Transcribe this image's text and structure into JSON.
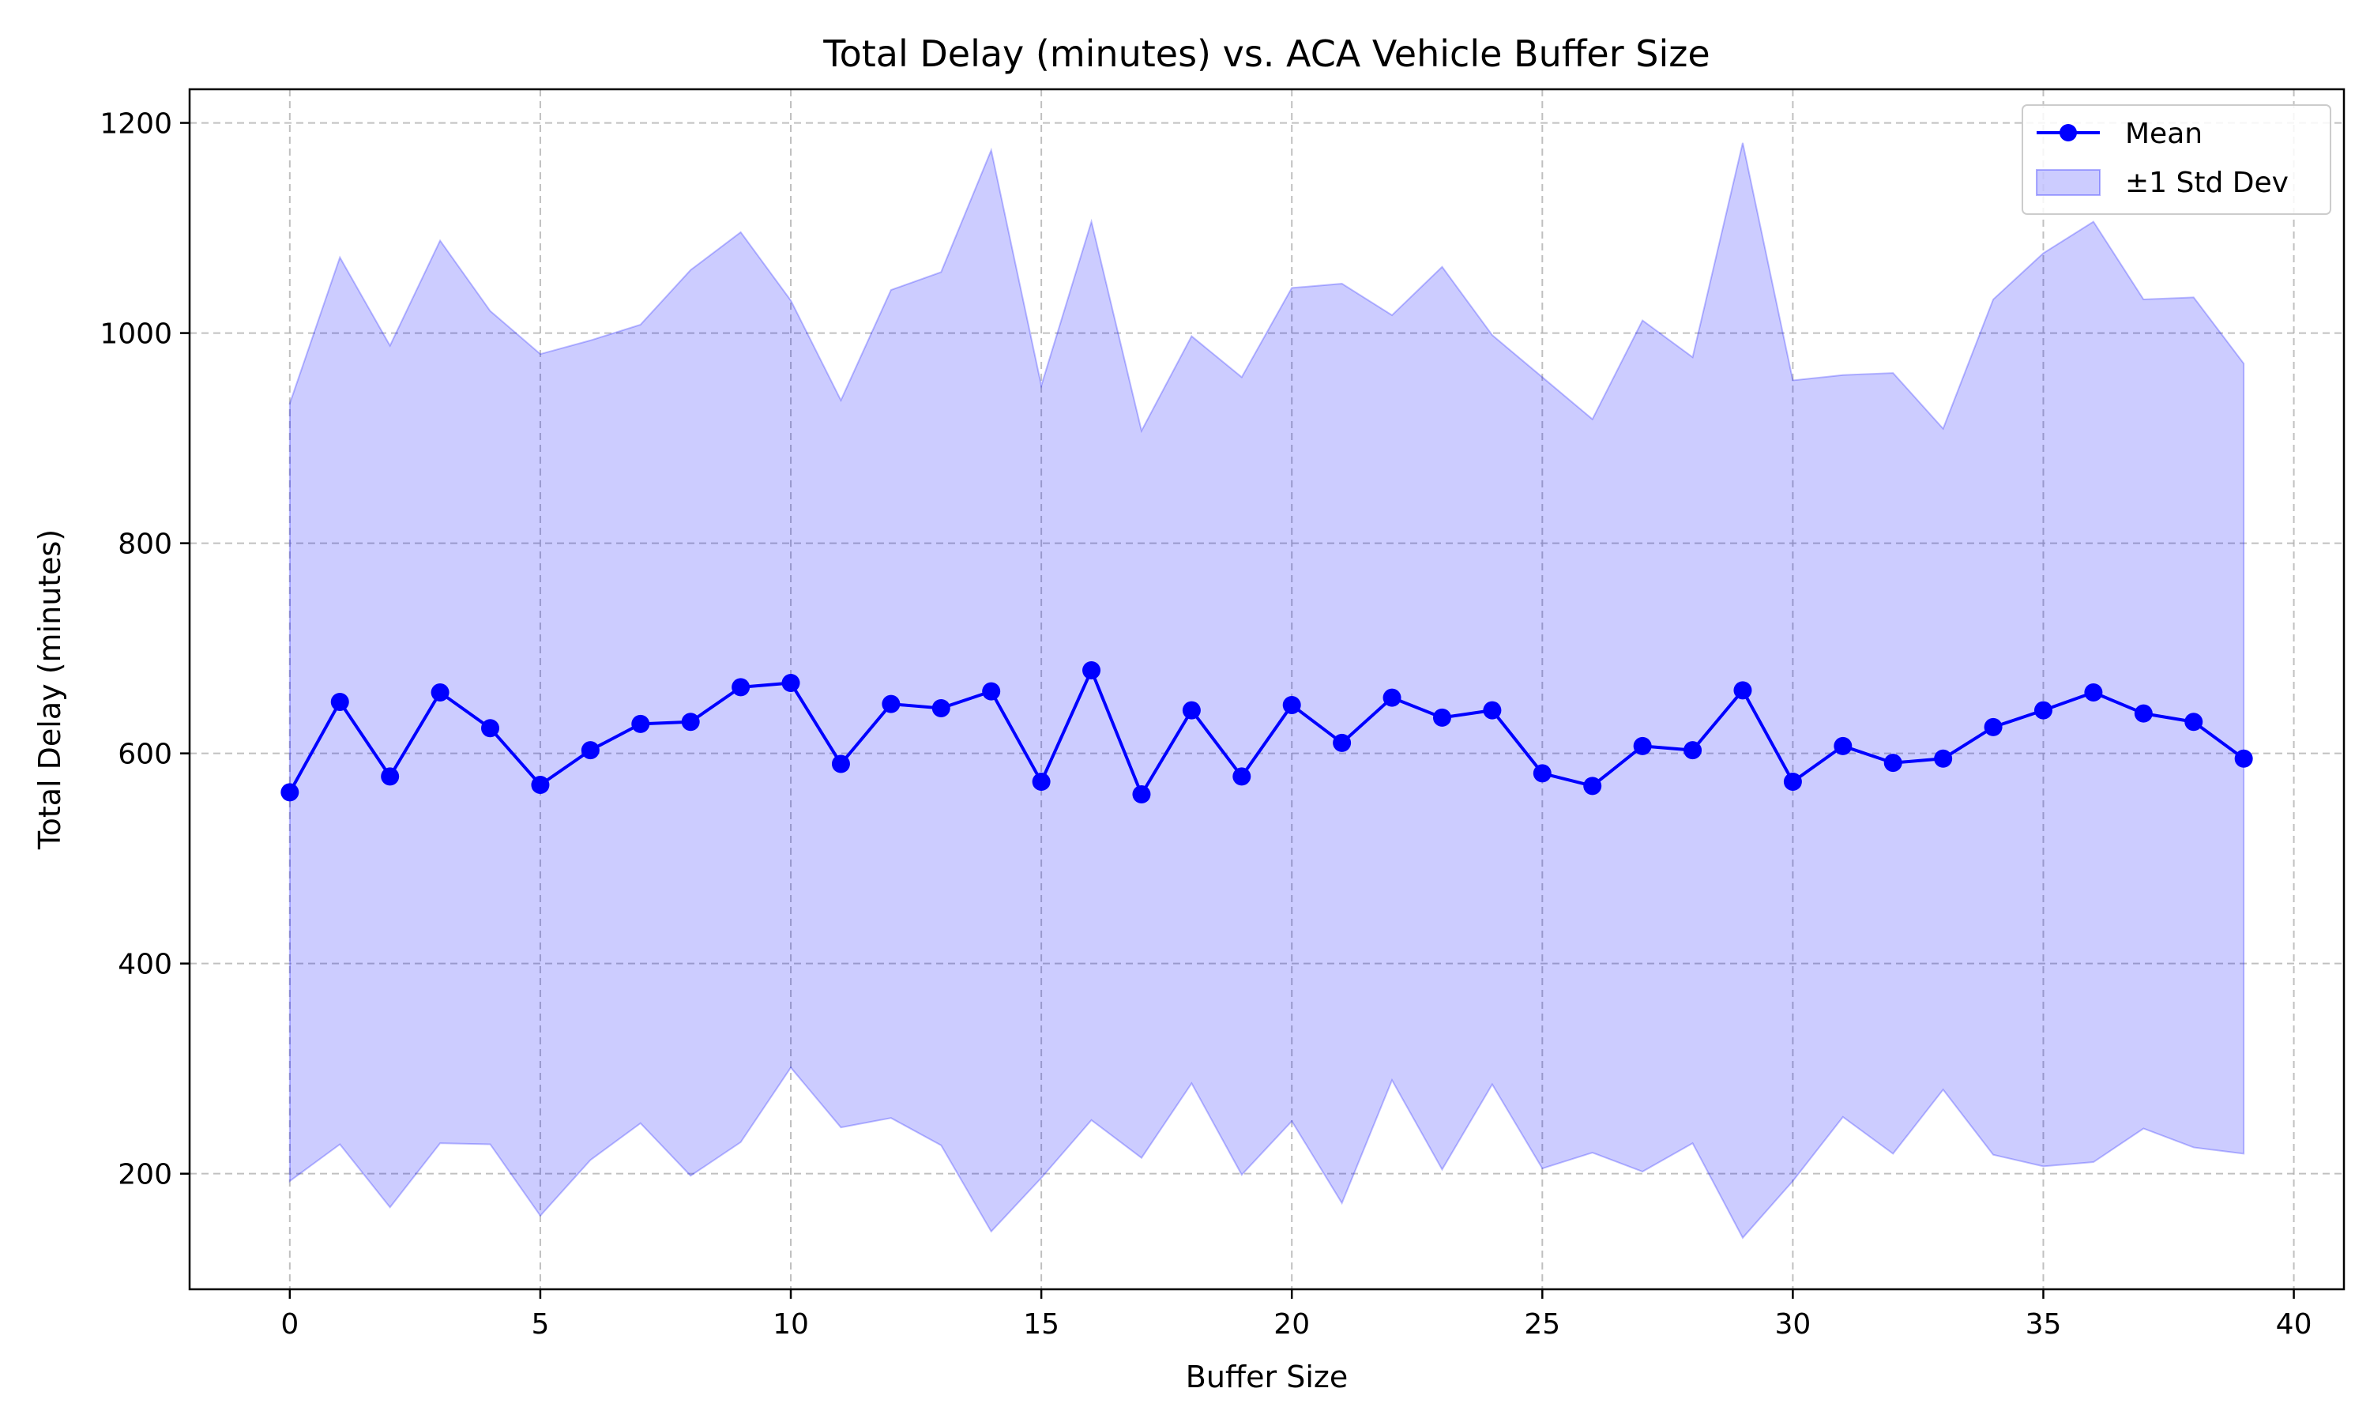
{
  "chart_data": {
    "type": "line",
    "title": "Total Delay (minutes) vs. ACA Vehicle Buffer Size",
    "xlabel": "Buffer Size",
    "ylabel": "Total Delay (minutes)",
    "xlim": [
      -2,
      41
    ],
    "ylim": [
      90,
      1232
    ],
    "xticks": [
      0,
      5,
      10,
      15,
      20,
      25,
      30,
      35,
      40
    ],
    "yticks": [
      200,
      400,
      600,
      800,
      1000,
      1200
    ],
    "grid": true,
    "legend_position": "top-right",
    "x": [
      0,
      1,
      2,
      3,
      4,
      5,
      6,
      7,
      8,
      9,
      10,
      11,
      12,
      13,
      14,
      15,
      16,
      17,
      18,
      19,
      20,
      21,
      22,
      23,
      24,
      25,
      26,
      27,
      28,
      29,
      30,
      31,
      32,
      33,
      34,
      35,
      36,
      37,
      38,
      39
    ],
    "series": [
      {
        "name": "Mean",
        "kind": "line-markers",
        "color": "#0000ff",
        "values": [
          563,
          649,
          578,
          658,
          624,
          570,
          603,
          628,
          630,
          663,
          667,
          590,
          647,
          643,
          659,
          573,
          679,
          561,
          641,
          578,
          646,
          610,
          653,
          634,
          641,
          581,
          569,
          607,
          603,
          660,
          573,
          607,
          591,
          595,
          625,
          641,
          658,
          638,
          630,
          595
        ]
      },
      {
        "name": "±1 Std Dev",
        "kind": "band",
        "color": "#0000ff",
        "fill_opacity": 0.2,
        "upper": [
          933,
          1072,
          988,
          1088,
          1021,
          980,
          993,
          1008,
          1060,
          1096,
          1031,
          936,
          1041,
          1058,
          1174,
          950,
          1106,
          907,
          997,
          958,
          1043,
          1047,
          1017,
          1063,
          998,
          958,
          918,
          1012,
          977,
          1181,
          955,
          960,
          962,
          909,
          1032,
          1076,
          1106,
          1032,
          1034,
          971
        ],
        "lower": [
          193,
          228,
          168,
          229,
          228,
          160,
          213,
          248,
          198,
          230,
          301,
          244,
          253,
          227,
          145,
          196,
          251,
          215,
          286,
          199,
          250,
          172,
          289,
          204,
          285,
          205,
          220,
          202,
          229,
          139,
          193,
          254,
          219,
          280,
          218,
          207,
          211,
          243,
          225,
          219
        ]
      }
    ]
  }
}
